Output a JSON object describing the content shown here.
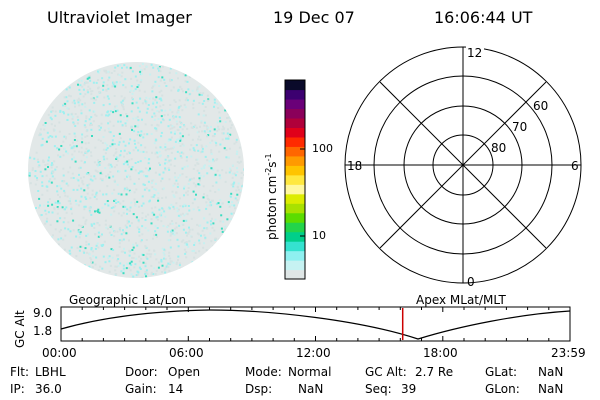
{
  "header": {
    "instrument": "Ultraviolet Imager",
    "date": "19 Dec 07",
    "time": "16:06:44 UT"
  },
  "colorbar": {
    "unit_label": "photon cm",
    "unit_sup1": "-2",
    "unit_mid": "s",
    "unit_sup2": "-1",
    "tick_labels": [
      "100",
      "10"
    ],
    "colors": [
      "#dfe6e6",
      "#c6f2f2",
      "#8ff0f0",
      "#35e2cf",
      "#00cf8a",
      "#23d44a",
      "#5cdc00",
      "#a9e100",
      "#dcec00",
      "#fff8a0",
      "#ffe840",
      "#ffc400",
      "#ff9a00",
      "#ff6600",
      "#ff2a00",
      "#e0001a",
      "#b0003a",
      "#8a005a",
      "#6a0078",
      "#3c0070",
      "#0a0a2a"
    ]
  },
  "polar_plot": {
    "hour_labels": {
      "top": "12",
      "left": "18",
      "right": "6",
      "bottom": "0"
    },
    "lat_labels": [
      "60",
      "70",
      "80"
    ]
  },
  "timeline": {
    "ylabel": "GC Alt",
    "left_label": "Geographic Lat/Lon",
    "right_label": "Apex MLat/MLT",
    "y_ticks": [
      "9.0",
      "1.8"
    ],
    "x_ticks": [
      "00:00",
      "06:00",
      "12:00",
      "18:00",
      "23:59"
    ],
    "current_time_hours": 16.11
  },
  "status": {
    "flt_label": "Flt:",
    "flt_value": "LBHL",
    "ip_label": "IP:",
    "ip_value": "36.0",
    "door_label": "Door:",
    "door_value": "Open",
    "gain_label": "Gain:",
    "gain_value": "14",
    "mode_label": "Mode:",
    "mode_value": "Normal",
    "dsp_label": "Dsp:",
    "dsp_value": "NaN",
    "gcalt_label": "GC Alt:",
    "gcalt_value": "2.7 Re",
    "seq_label": "Seq:",
    "seq_value": "39",
    "glat_label": "GLat:",
    "glat_value": "NaN",
    "glon_label": "GLon:",
    "glon_value": "NaN"
  },
  "colors": {
    "time_marker": "#cc0000",
    "disk_base": "#e2e8e8"
  }
}
